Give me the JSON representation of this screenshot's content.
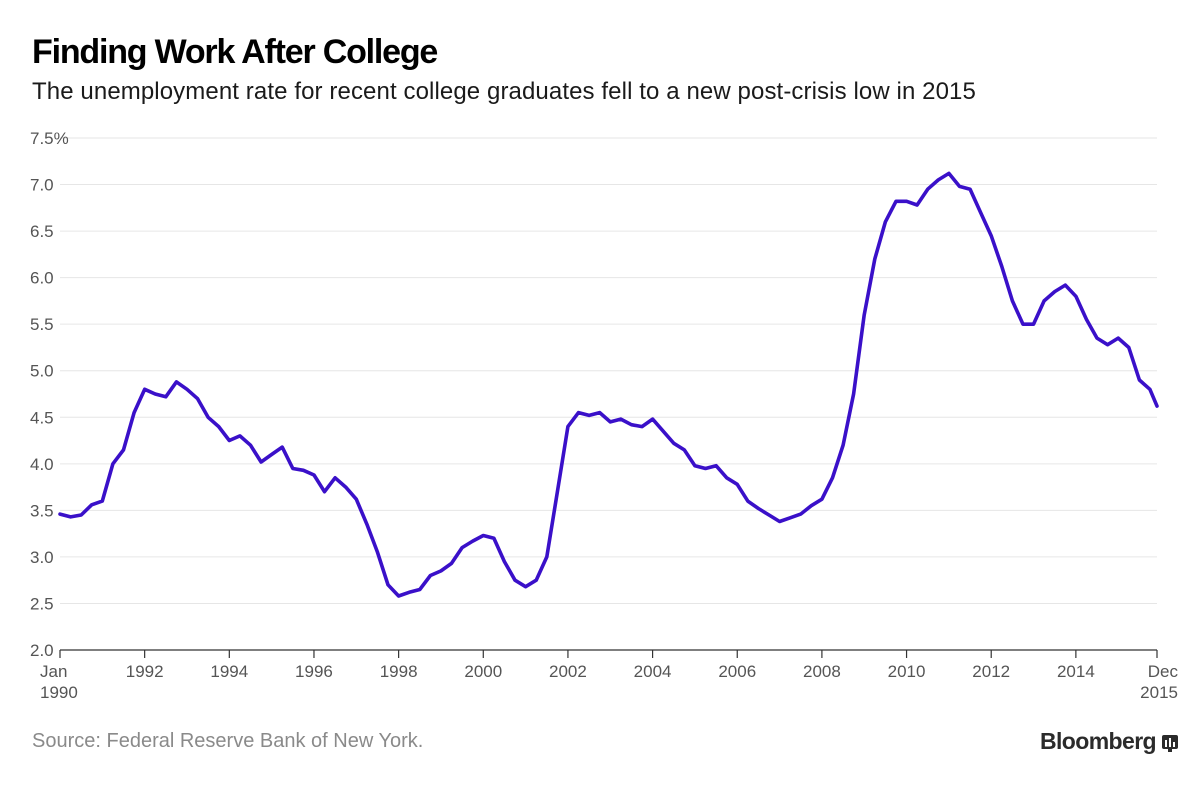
{
  "header": {
    "title": "Finding Work After College",
    "subtitle": "The unemployment rate for recent college graduates fell to a new post-crisis low in 2015"
  },
  "footer": {
    "source": "Source: Federal Reserve Bank of New York.",
    "brand": "Bloomberg",
    "brand_icon": "bloomberg-terminal-icon"
  },
  "colors": {
    "line": "#3a10c9",
    "grid": "#e6e6e6",
    "axis": "#333333"
  },
  "chart_data": {
    "type": "line",
    "title": "Finding Work After College",
    "subtitle": "The unemployment rate for recent college graduates fell to a new post-crisis low in 2015",
    "ylim": [
      2.0,
      7.5
    ],
    "xlim": [
      "1990-01",
      "2015-12"
    ],
    "y_ticks": [
      "7.5%",
      "7.0",
      "6.5",
      "6.0",
      "5.5",
      "5.0",
      "4.5",
      "4.0",
      "3.5",
      "3.0",
      "2.5",
      "2.0"
    ],
    "x_ticks": [
      "Jan|1990",
      "1992",
      "1994",
      "1996",
      "1998",
      "2000",
      "2002",
      "2004",
      "2006",
      "2008",
      "2010",
      "2012",
      "2014",
      "Dec|2015"
    ],
    "grid": true,
    "series": [
      {
        "values": [
          [
            "1990-01",
            3.46
          ],
          [
            "1990-04",
            3.43
          ],
          [
            "1990-07",
            3.45
          ],
          [
            "1990-10",
            3.56
          ],
          [
            "1991-01",
            3.6
          ],
          [
            "1991-04",
            4.0
          ],
          [
            "1991-07",
            4.15
          ],
          [
            "1991-10",
            4.55
          ],
          [
            "1992-01",
            4.8
          ],
          [
            "1992-04",
            4.75
          ],
          [
            "1992-07",
            4.72
          ],
          [
            "1992-10",
            4.88
          ],
          [
            "1993-01",
            4.8
          ],
          [
            "1993-04",
            4.7
          ],
          [
            "1993-07",
            4.5
          ],
          [
            "1993-10",
            4.4
          ],
          [
            "1994-01",
            4.25
          ],
          [
            "1994-04",
            4.3
          ],
          [
            "1994-07",
            4.2
          ],
          [
            "1994-10",
            4.02
          ],
          [
            "1995-01",
            4.1
          ],
          [
            "1995-04",
            4.18
          ],
          [
            "1995-07",
            3.95
          ],
          [
            "1995-10",
            3.93
          ],
          [
            "1996-01",
            3.88
          ],
          [
            "1996-04",
            3.7
          ],
          [
            "1996-07",
            3.85
          ],
          [
            "1996-10",
            3.75
          ],
          [
            "1997-01",
            3.62
          ],
          [
            "1997-04",
            3.35
          ],
          [
            "1997-07",
            3.05
          ],
          [
            "1997-10",
            2.7
          ],
          [
            "1998-01",
            2.58
          ],
          [
            "1998-04",
            2.62
          ],
          [
            "1998-07",
            2.65
          ],
          [
            "1998-10",
            2.8
          ],
          [
            "1999-01",
            2.85
          ],
          [
            "1999-04",
            2.93
          ],
          [
            "1999-07",
            3.1
          ],
          [
            "1999-10",
            3.17
          ],
          [
            "2000-01",
            3.23
          ],
          [
            "2000-04",
            3.2
          ],
          [
            "2000-07",
            2.95
          ],
          [
            "2000-10",
            2.75
          ],
          [
            "2001-01",
            2.68
          ],
          [
            "2001-04",
            2.75
          ],
          [
            "2001-07",
            3.0
          ],
          [
            "2001-10",
            3.7
          ],
          [
            "2002-01",
            4.4
          ],
          [
            "2002-04",
            4.55
          ],
          [
            "2002-07",
            4.52
          ],
          [
            "2002-10",
            4.55
          ],
          [
            "2003-01",
            4.45
          ],
          [
            "2003-04",
            4.48
          ],
          [
            "2003-07",
            4.42
          ],
          [
            "2003-10",
            4.4
          ],
          [
            "2004-01",
            4.48
          ],
          [
            "2004-04",
            4.35
          ],
          [
            "2004-07",
            4.22
          ],
          [
            "2004-10",
            4.15
          ],
          [
            "2005-01",
            3.98
          ],
          [
            "2005-04",
            3.95
          ],
          [
            "2005-07",
            3.98
          ],
          [
            "2005-10",
            3.85
          ],
          [
            "2006-01",
            3.78
          ],
          [
            "2006-04",
            3.6
          ],
          [
            "2006-07",
            3.52
          ],
          [
            "2006-10",
            3.45
          ],
          [
            "2007-01",
            3.38
          ],
          [
            "2007-04",
            3.42
          ],
          [
            "2007-07",
            3.46
          ],
          [
            "2007-10",
            3.55
          ],
          [
            "2008-01",
            3.62
          ],
          [
            "2008-04",
            3.85
          ],
          [
            "2008-07",
            4.2
          ],
          [
            "2008-10",
            4.75
          ],
          [
            "2009-01",
            5.6
          ],
          [
            "2009-04",
            6.2
          ],
          [
            "2009-07",
            6.6
          ],
          [
            "2009-10",
            6.82
          ],
          [
            "2010-01",
            6.82
          ],
          [
            "2010-04",
            6.78
          ],
          [
            "2010-07",
            6.95
          ],
          [
            "2010-10",
            7.05
          ],
          [
            "2011-01",
            7.12
          ],
          [
            "2011-04",
            6.98
          ],
          [
            "2011-07",
            6.95
          ],
          [
            "2011-10",
            6.7
          ],
          [
            "2012-01",
            6.45
          ],
          [
            "2012-04",
            6.12
          ],
          [
            "2012-07",
            5.75
          ],
          [
            "2012-10",
            5.5
          ],
          [
            "2013-01",
            5.5
          ],
          [
            "2013-04",
            5.75
          ],
          [
            "2013-07",
            5.85
          ],
          [
            "2013-10",
            5.92
          ],
          [
            "2014-01",
            5.8
          ],
          [
            "2014-04",
            5.55
          ],
          [
            "2014-07",
            5.35
          ],
          [
            "2014-10",
            5.28
          ],
          [
            "2015-01",
            5.35
          ],
          [
            "2015-04",
            5.25
          ],
          [
            "2015-07",
            4.9
          ],
          [
            "2015-10",
            4.8
          ],
          [
            "2015-12",
            4.62
          ]
        ]
      }
    ]
  }
}
